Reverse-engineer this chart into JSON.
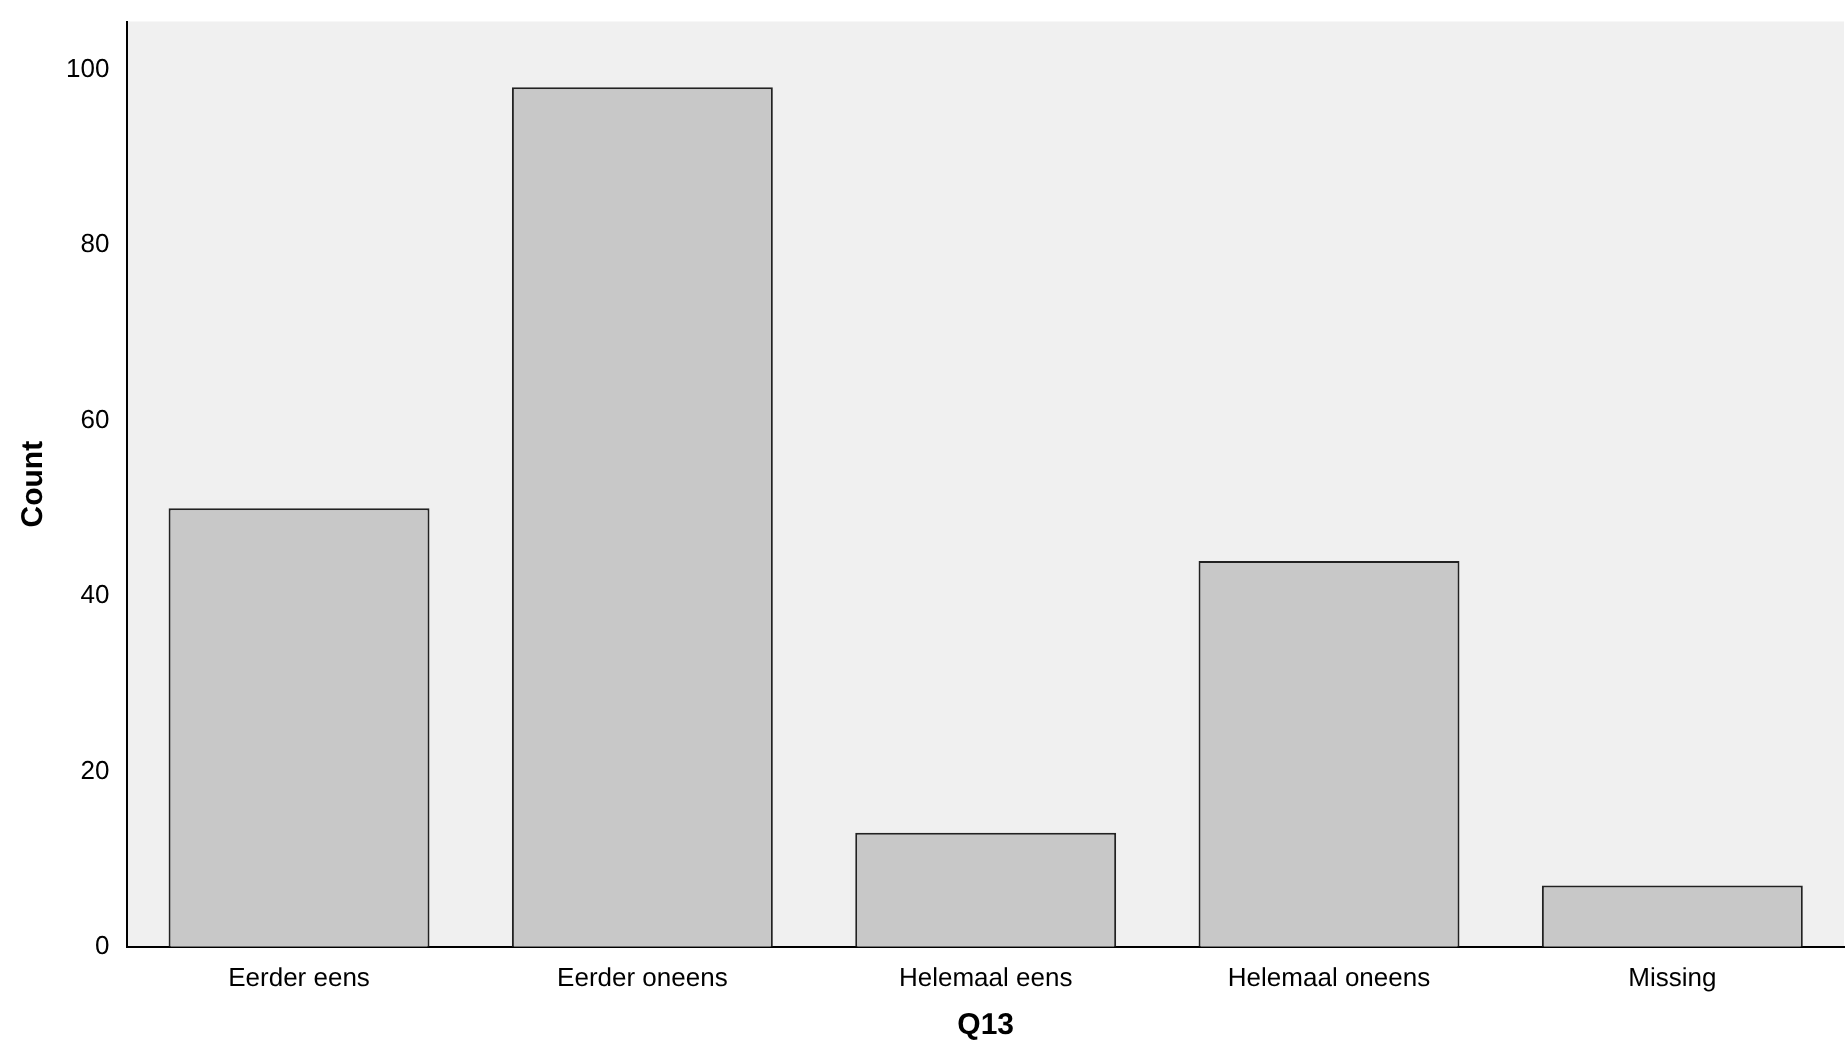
{
  "chart_data": {
    "type": "bar",
    "xlabel": "Q13",
    "ylabel": "Count",
    "categories": [
      "Eerder eens",
      "Eerder oneens",
      "Helemaal eens",
      "Helemaal oneens",
      "Missing"
    ],
    "values": [
      50,
      98,
      13,
      44,
      7
    ],
    "color": "#c8c8c8",
    "ylim": [
      0,
      105.5
    ],
    "yticks": [
      0,
      20,
      40,
      60,
      80,
      100
    ]
  }
}
